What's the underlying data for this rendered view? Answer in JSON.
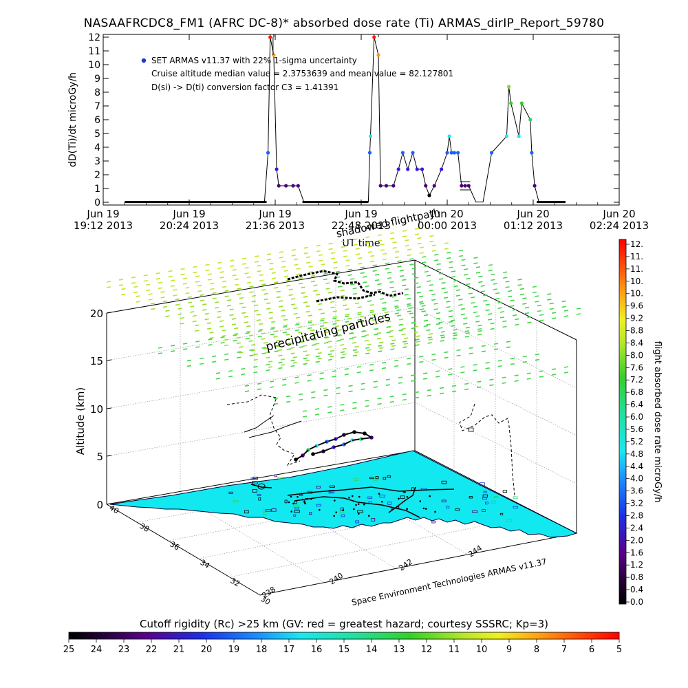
{
  "title": "NASAAFRCDC8_FM1 (AFRC DC-8)* absorbed dose rate (Ti) ARMAS_dirIP_Report_59780",
  "chart_data": [
    {
      "type": "line",
      "ylabel": "dD(Ti)/dt microGy/h",
      "xlabel": "UT time",
      "ylim": [
        0,
        12
      ],
      "y_ticks": [
        "0",
        "1",
        "2",
        "3",
        "4",
        "5",
        "6",
        "7",
        "8",
        "9",
        "10",
        "11",
        "12"
      ],
      "x_ticks": [
        {
          "line1": "Jun 19",
          "line2": "19:12 2013"
        },
        {
          "line1": "Jun 19",
          "line2": "20:24 2013"
        },
        {
          "line1": "Jun 19",
          "line2": "21:36 2013"
        },
        {
          "line1": "Jun 19",
          "line2": "22:48 2013"
        },
        {
          "line1": "Jun 20",
          "line2": "00:00 2013"
        },
        {
          "line1": "Jun 20",
          "line2": "01:12 2013"
        },
        {
          "line1": "Jun 20",
          "line2": "02:24 2013"
        }
      ],
      "x_hours": [
        0,
        1.2,
        2.4,
        3.6,
        4.8,
        6.0,
        7.2
      ],
      "annotations": [
        "SET ARMAS v11.37 with 22% 1-sigma uncertainty",
        "Cruise altitude median value = 2.3753639 and mean value = 82.127801",
        "D(si) -> D(ti) conversion factor C3 = 1.41391"
      ],
      "legend_marker_color": "#1a35d8",
      "series": [
        {
          "points": [
            [
              0.3,
              0.02
            ],
            [
              0.45,
              0.02
            ],
            [
              0.6,
              0.02
            ],
            [
              0.75,
              0.02
            ],
            [
              0.9,
              0.02
            ],
            [
              1.05,
              0.02
            ],
            [
              1.2,
              0.02
            ],
            [
              1.35,
              0.02
            ],
            [
              1.5,
              0.02
            ],
            [
              1.65,
              0.02
            ],
            [
              1.8,
              0.02
            ],
            [
              1.95,
              0.02
            ],
            [
              2.1,
              0.02
            ],
            [
              2.25,
              0.02
            ],
            [
              2.3,
              3.6
            ],
            [
              2.33,
              12.0
            ],
            [
              2.38,
              10.7
            ],
            [
              2.42,
              2.4
            ],
            [
              2.45,
              1.2
            ],
            [
              2.55,
              1.2
            ],
            [
              2.65,
              1.2
            ],
            [
              2.72,
              1.2
            ],
            [
              2.8,
              0.02
            ],
            [
              3.0,
              0.02
            ],
            [
              3.2,
              0.02
            ],
            [
              3.4,
              0.02
            ],
            [
              3.6,
              0.02
            ],
            [
              3.7,
              0.02
            ],
            [
              3.72,
              3.6
            ],
            [
              3.73,
              4.8
            ],
            [
              3.78,
              12.0
            ],
            [
              3.84,
              10.7
            ],
            [
              3.87,
              1.2
            ],
            [
              3.95,
              1.2
            ],
            [
              4.05,
              1.2
            ],
            [
              4.12,
              2.4
            ],
            [
              4.18,
              3.6
            ],
            [
              4.25,
              2.4
            ],
            [
              4.32,
              3.6
            ],
            [
              4.38,
              2.4
            ],
            [
              4.45,
              2.4
            ],
            [
              4.5,
              1.2
            ],
            [
              4.55,
              0.5
            ],
            [
              4.62,
              1.2
            ],
            [
              4.72,
              2.4
            ],
            [
              4.8,
              3.6
            ],
            [
              4.83,
              4.8
            ],
            [
              4.86,
              3.6
            ],
            [
              4.9,
              3.6
            ],
            [
              4.95,
              3.6
            ],
            [
              5.0,
              1.2
            ],
            [
              5.05,
              1.2
            ],
            [
              5.1,
              1.2
            ],
            [
              5.2,
              0.02
            ],
            [
              5.3,
              0.02
            ],
            [
              5.42,
              3.6
            ],
            [
              5.63,
              4.8
            ],
            [
              5.66,
              8.4
            ],
            [
              5.69,
              7.2
            ],
            [
              5.8,
              4.8
            ],
            [
              5.84,
              7.2
            ],
            [
              5.96,
              6.0
            ],
            [
              5.98,
              3.6
            ],
            [
              6.02,
              1.2
            ],
            [
              6.08,
              0.02
            ],
            [
              6.2,
              0.02
            ],
            [
              6.35,
              0.02
            ],
            [
              6.45,
              0.02
            ]
          ]
        }
      ]
    },
    {
      "type": "scatter",
      "zlabel": "Altitude (km)",
      "z_ticks": [
        "0",
        "5",
        "10",
        "15",
        "20"
      ],
      "lat_ticks": [
        "40",
        "38",
        "36",
        "34",
        "32",
        "30"
      ],
      "lon_ticks": [
        "238",
        "240",
        "242",
        "244"
      ],
      "annotations": [
        "shadowed flightpath",
        "precipitating particles"
      ],
      "credit": "Space Environment Technologies ARMAS v11.37",
      "map_fill_color": "#12e8f0",
      "particle_colors": [
        "#bfe82a",
        "#44d84a",
        "#9ade2a"
      ]
    },
    {
      "type": "heatmap",
      "colorbar_label": "flight absorbed dose rate microGy/h",
      "colorbar_ticks": [
        "12.",
        "11.",
        "11.",
        "10.",
        "10.",
        "9.6",
        "9.2",
        "8.8",
        "8.4",
        "8.0",
        "7.6",
        "7.2",
        "6.8",
        "6.4",
        "6.0",
        "5.6",
        "5.2",
        "4.8",
        "4.4",
        "4.0",
        "3.6",
        "3.2",
        "2.8",
        "2.4",
        "2.0",
        "1.6",
        "1.2",
        "0.8",
        "0.4",
        "0.0"
      ]
    },
    {
      "type": "heatmap",
      "colorbar_label": "Cutoff rigidity (Rc) >25 km (GV: red = greatest hazard; courtesy SSSRC; Kp=3)",
      "colorbar_ticks": [
        "25",
        "24",
        "23",
        "22",
        "21",
        "20",
        "19",
        "18",
        "17",
        "16",
        "15",
        "14",
        "13",
        "12",
        "11",
        "10",
        "9",
        "8",
        "7",
        "6",
        "5"
      ]
    }
  ]
}
